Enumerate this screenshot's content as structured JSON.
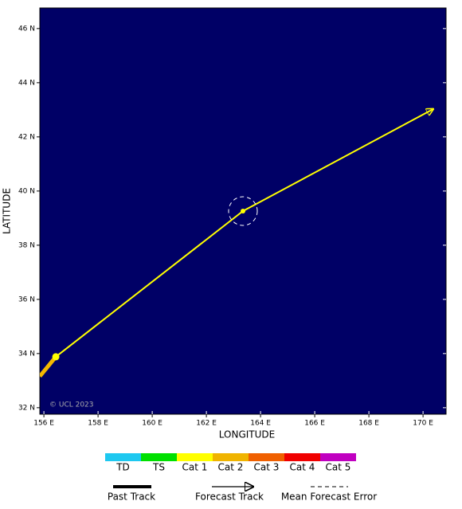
{
  "chart_data": {
    "type": "track",
    "x_label": "LONGITUDE",
    "y_label": "LATITUDE",
    "copyright": "© UCL 2023",
    "background": "#000066",
    "xlim": [
      155.85,
      170.85
    ],
    "ylim": [
      31.76,
      46.76
    ],
    "xticks": [
      {
        "value": 156,
        "label": "156 E"
      },
      {
        "value": 158,
        "label": "158 E"
      },
      {
        "value": 160,
        "label": "160 E"
      },
      {
        "value": 162,
        "label": "162 E"
      },
      {
        "value": 164,
        "label": "164 E"
      },
      {
        "value": 166,
        "label": "166 E"
      },
      {
        "value": 168,
        "label": "168 E"
      },
      {
        "value": 170,
        "label": "170 E"
      }
    ],
    "yticks": [
      {
        "value": 32,
        "label": "32 N"
      },
      {
        "value": 34,
        "label": "34 N"
      },
      {
        "value": 36,
        "label": "36 N"
      },
      {
        "value": 38,
        "label": "38 N"
      },
      {
        "value": 40,
        "label": "40 N"
      },
      {
        "value": 42,
        "label": "42 N"
      },
      {
        "value": 44,
        "label": "44 N"
      },
      {
        "value": 46,
        "label": "46 N"
      }
    ],
    "series": [
      {
        "name": "Past Track",
        "color": "#f5b800",
        "x": [
          155.85,
          156.44
        ],
        "values": [
          33.16,
          33.88
        ]
      },
      {
        "name": "Forecast Track",
        "color": "#ffff00",
        "x": [
          156.44,
          163.35,
          170.38
        ],
        "values": [
          33.88,
          39.26,
          43.03
        ]
      }
    ],
    "error_label": "Mean Forecast Error",
    "error_radius": 0.53,
    "intensity_scale": [
      {
        "label": "TD",
        "color": "#1ec8f0"
      },
      {
        "label": "TS",
        "color": "#00e000"
      },
      {
        "label": "Cat 1",
        "color": "#ffff00"
      },
      {
        "label": "Cat 2",
        "color": "#f0b400"
      },
      {
        "label": "Cat 3",
        "color": "#f06000"
      },
      {
        "label": "Cat 4",
        "color": "#f00000"
      },
      {
        "label": "Cat 5",
        "color": "#c000c0"
      }
    ]
  }
}
